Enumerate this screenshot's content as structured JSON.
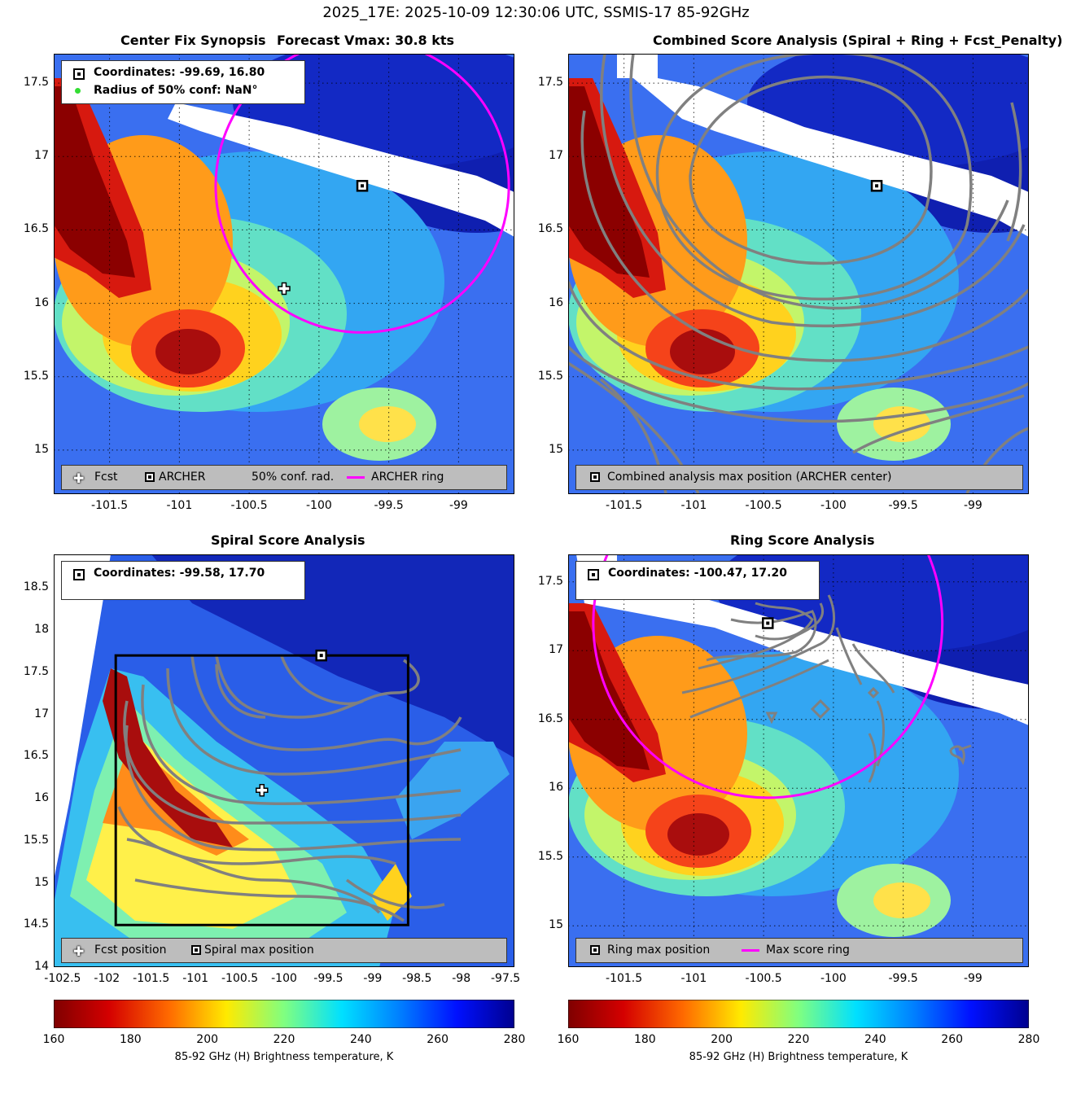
{
  "suptitle": "2025_17E: 2025-10-09 12:30:06 UTC, SSMIS-17 85-92GHz",
  "colors": {
    "archer_ring": "#ff00ff",
    "legend_bottom_bg": "#bdbdbd",
    "grid": "dotted black"
  },
  "icons": {
    "forecast": "white-plus-marker",
    "archer": "black-square-marker",
    "conf_radius": "green-dot-marker",
    "contours": "gray-lines"
  },
  "panels": {
    "tl": {
      "title_left": "Center Fix Synopsis",
      "title_right": "Forecast Vmax: 30.8 kts",
      "legend_coords": "Coordinates: -99.69, 16.80",
      "legend_radius": "Radius of 50% conf: NaN°",
      "bottom_legend": {
        "fcst": "Fcst",
        "archer": "ARCHER",
        "conf": "50% conf. rad.",
        "ring": "ARCHER ring"
      }
    },
    "tr": {
      "title": "Combined Score Analysis (Spiral + Ring + Fcst_Penalty)",
      "bottom_legend": {
        "max": "Combined analysis max position (ARCHER center)"
      }
    },
    "bl": {
      "title": "Spiral Score Analysis",
      "legend_coords": "Coordinates: -99.58, 17.70",
      "bottom_legend": {
        "fcst": "Fcst position",
        "max": "Spiral max position"
      }
    },
    "br": {
      "title": "Ring Score Analysis",
      "legend_coords": "Coordinates: -100.47, 17.20",
      "bottom_legend": {
        "max": "Ring max position",
        "ring": "Max score ring"
      }
    }
  },
  "chart_data": [
    {
      "type": "heatmap",
      "title": "Center Fix Synopsis",
      "subtitle": "Forecast Vmax: 30.8 kts",
      "xlim": [
        -101.9,
        -98.6
      ],
      "ylim": [
        14.7,
        17.7
      ],
      "xticks": [
        -101.5,
        -101,
        -100.5,
        -100,
        -99.5,
        -99
      ],
      "yticks": [
        15,
        15.5,
        16,
        16.5,
        17,
        17.5
      ],
      "xtick_labels": [
        "-101.5",
        "-101",
        "-100.5",
        "-100",
        "-99.5",
        "-99"
      ],
      "ytick_labels": [
        "15",
        "15.5",
        "16",
        "16.5",
        "17",
        "17.5"
      ],
      "grid": true,
      "markers": {
        "forecast": [
          -100.25,
          16.1
        ],
        "archer": [
          -99.69,
          16.8
        ]
      },
      "archer_ring": {
        "center": [
          -99.69,
          16.8
        ],
        "radius_deg": 1.05
      }
    },
    {
      "type": "heatmap",
      "title": "Combined Score Analysis (Spiral + Ring + Fcst_Penalty)",
      "xlim": [
        -101.9,
        -98.6
      ],
      "ylim": [
        14.7,
        17.7
      ],
      "xticks": [
        -101.5,
        -101,
        -100.5,
        -100,
        -99.5,
        -99
      ],
      "yticks": [
        15,
        15.5,
        16,
        16.5,
        17,
        17.5
      ],
      "xtick_labels": [
        "-101.5",
        "-101",
        "-100.5",
        "-100",
        "-99.5",
        "-99"
      ],
      "ytick_labels": [
        "15",
        "15.5",
        "16",
        "16.5",
        "17",
        "17.5"
      ],
      "grid": true,
      "markers": {
        "combined_max": [
          -99.69,
          16.8
        ]
      }
    },
    {
      "type": "heatmap",
      "title": "Spiral Score Analysis",
      "xlim": [
        -102.6,
        -97.4
      ],
      "ylim": [
        14.0,
        18.9
      ],
      "xticks": [
        -102.5,
        -102,
        -101.5,
        -101,
        -100.5,
        -100,
        -99.5,
        -99,
        -98.5,
        -98,
        -97.5
      ],
      "yticks": [
        14,
        14.5,
        15,
        15.5,
        16,
        16.5,
        17,
        17.5,
        18,
        18.5
      ],
      "xtick_labels": [
        "-102.5",
        "-102",
        "-101.5",
        "-101",
        "-100.5",
        "-100",
        "-99.5",
        "-99",
        "-98.5",
        "-98",
        "-97.5"
      ],
      "ytick_labels": [
        "14",
        "14.5",
        "15",
        "15.5",
        "16",
        "16.5",
        "17",
        "17.5",
        "18",
        "18.5"
      ],
      "grid": false,
      "search_box": {
        "lon": [
          -101.9,
          -98.6
        ],
        "lat": [
          14.5,
          17.7
        ]
      },
      "markers": {
        "forecast": [
          -100.25,
          16.1
        ],
        "spiral_max": [
          -99.58,
          17.7
        ]
      }
    },
    {
      "type": "heatmap",
      "title": "Ring Score Analysis",
      "xlim": [
        -101.9,
        -98.6
      ],
      "ylim": [
        14.7,
        17.7
      ],
      "xticks": [
        -101.5,
        -101,
        -100.5,
        -100,
        -99.5,
        -99
      ],
      "yticks": [
        15,
        15.5,
        16,
        16.5,
        17,
        17.5
      ],
      "xtick_labels": [
        "-101.5",
        "-101",
        "-100.5",
        "-100",
        "-99.5",
        "-99"
      ],
      "ytick_labels": [
        "15",
        "15.5",
        "16",
        "16.5",
        "17",
        "17.5"
      ],
      "grid": true,
      "markers": {
        "ring_max": [
          -100.47,
          17.2
        ]
      },
      "max_score_ring": {
        "center": [
          -100.47,
          17.2
        ],
        "radius_deg": 1.25
      }
    }
  ],
  "colorbar": {
    "min": 160,
    "max": 280,
    "ticks": [
      "160",
      "180",
      "200",
      "220",
      "240",
      "260",
      "280"
    ],
    "label": "85-92 GHz (H) Brightness temperature, K"
  }
}
